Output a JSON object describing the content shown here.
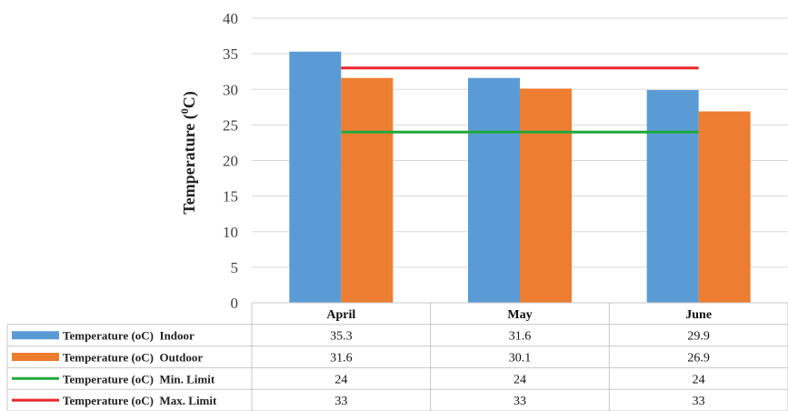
{
  "chart_data": {
    "type": "bar",
    "categories": [
      "April",
      "May",
      "June"
    ],
    "ylabel": "Temperature (0C)",
    "ylabel_main": "Temperature (",
    "ylabel_sup": "0",
    "ylabel_end": "C)",
    "ylim": [
      0,
      40
    ],
    "yticks": [
      0,
      5,
      10,
      15,
      20,
      25,
      30,
      35,
      40
    ],
    "grid": true,
    "legend": "data-table-left",
    "series": [
      {
        "name": "Temperature (oC)  Indoor",
        "kind": "bar",
        "color": "#5b9bd5",
        "values": [
          35.3,
          31.6,
          29.9
        ],
        "labels": [
          "35.3",
          "31.6",
          "29.9"
        ]
      },
      {
        "name": "Temperature (oC)  Outdoor",
        "kind": "bar",
        "color": "#ed7d31",
        "values": [
          31.6,
          30.1,
          26.9
        ],
        "labels": [
          "31.6",
          "30.1",
          "26.9"
        ]
      },
      {
        "name": "Temperature (oC)  Min. Limit",
        "kind": "line",
        "color": "#21a83a",
        "values": [
          24,
          24,
          24
        ],
        "labels": [
          "24",
          "24",
          "24"
        ]
      },
      {
        "name": "Temperature (oC)  Max. Limit",
        "kind": "line",
        "color": "#e8262a",
        "values": [
          33,
          33,
          33
        ],
        "labels": [
          "33",
          "33",
          "33"
        ]
      }
    ]
  }
}
